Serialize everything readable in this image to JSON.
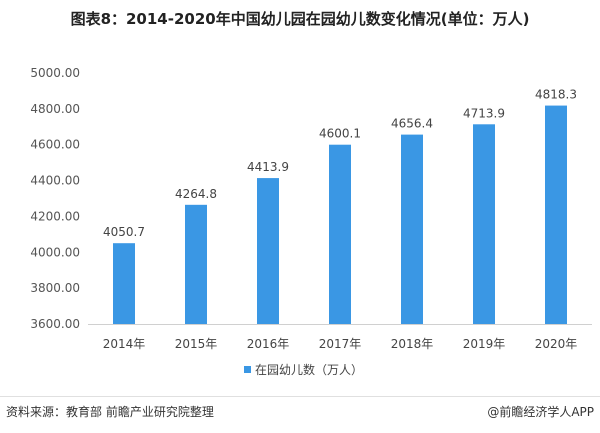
{
  "title": "图表8：2014-2020年中国幼儿园在园幼儿数变化情况(单位：万人)",
  "chart_data": {
    "type": "bar",
    "categories": [
      "2014年",
      "2015年",
      "2016年",
      "2017年",
      "2018年",
      "2019年",
      "2020年"
    ],
    "series": [
      {
        "name": "在园幼儿数（万人）",
        "values": [
          4050.7,
          4264.8,
          4413.9,
          4600.1,
          4656.4,
          4713.9,
          4818.3
        ]
      }
    ],
    "data_labels": [
      "4050.7",
      "4264.8",
      "4413.9",
      "4600.1",
      "4656.4",
      "4713.9",
      "4818.3"
    ],
    "ylim": [
      3600,
      5000
    ],
    "yticks": [
      "3600.00",
      "3800.00",
      "4000.00",
      "4200.00",
      "4400.00",
      "4600.00",
      "4800.00",
      "5000.00"
    ],
    "grid": false,
    "legend_position": "bottom",
    "bar_color": "#3a97e4"
  },
  "footer": {
    "source": "资料来源：教育部 前瞻产业研究院整理",
    "brand": "@前瞻经济学人APP"
  }
}
